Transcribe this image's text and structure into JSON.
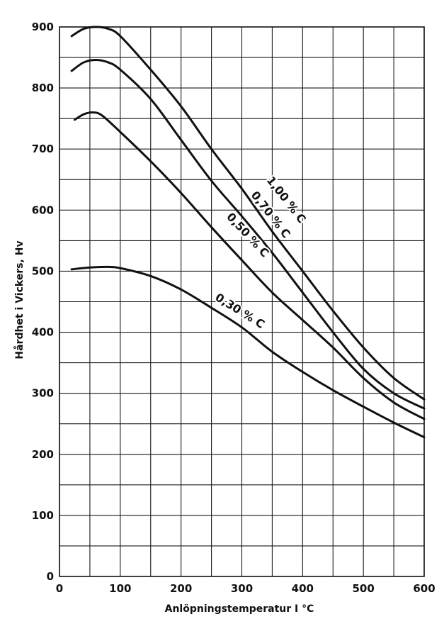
{
  "chart_data": {
    "type": "line",
    "xlabel": "Anlöpningstemperatur I °C",
    "ylabel": "Hårdhet i Vickers, Hv",
    "xlim": [
      0,
      600
    ],
    "ylim": [
      0,
      900
    ],
    "x_ticks": [
      0,
      100,
      200,
      300,
      400,
      500,
      600
    ],
    "y_ticks": [
      0,
      100,
      200,
      300,
      400,
      500,
      600,
      700,
      800,
      900
    ],
    "x_tick_labels": [
      "0",
      "100",
      "200",
      "300",
      "400",
      "500",
      "600"
    ],
    "y_tick_labels": [
      "0",
      "100",
      "200",
      "300",
      "400",
      "500",
      "600",
      "700",
      "800",
      "900"
    ],
    "grid": true,
    "series": [
      {
        "name": "1,00 % C",
        "x": [
          20,
          40,
          60,
          80,
          100,
          150,
          200,
          250,
          300,
          350,
          400,
          450,
          500,
          550,
          600
        ],
        "y": [
          885,
          897,
          900,
          897,
          885,
          830,
          770,
          700,
          635,
          565,
          500,
          435,
          375,
          325,
          290
        ]
      },
      {
        "name": "0,70 % C",
        "x": [
          20,
          40,
          60,
          80,
          100,
          150,
          200,
          250,
          300,
          350,
          400,
          450,
          500,
          550,
          600
        ],
        "y": [
          828,
          842,
          846,
          842,
          830,
          782,
          715,
          648,
          590,
          530,
          465,
          400,
          340,
          300,
          275
        ]
      },
      {
        "name": "0,50 % C",
        "x": [
          25,
          40,
          55,
          70,
          100,
          150,
          200,
          250,
          300,
          350,
          400,
          450,
          500,
          550,
          600
        ],
        "y": [
          748,
          757,
          760,
          755,
          728,
          680,
          628,
          572,
          518,
          465,
          420,
          375,
          325,
          285,
          258
        ]
      },
      {
        "name": "0,30 % C",
        "x": [
          20,
          50,
          80,
          100,
          150,
          200,
          250,
          300,
          350,
          400,
          450,
          500,
          550,
          600
        ],
        "y": [
          503,
          506,
          507,
          505,
          492,
          470,
          440,
          408,
          368,
          335,
          305,
          278,
          252,
          228
        ]
      }
    ],
    "annotations": [
      {
        "text": "1,00 % C",
        "series": 0
      },
      {
        "text": "0,70 % C",
        "series": 1
      },
      {
        "text": "0,50 % C",
        "series": 2
      },
      {
        "text": "0,30 % C",
        "series": 3
      }
    ]
  }
}
